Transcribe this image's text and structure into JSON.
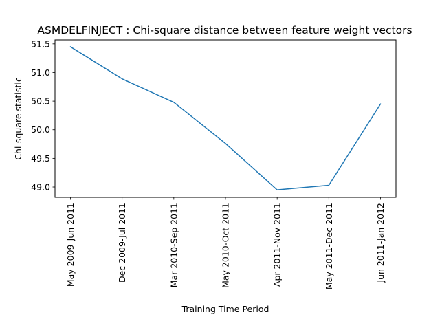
{
  "colors": {
    "line": "#1f77b4",
    "axes": "#000000",
    "background": "#ffffff"
  },
  "chart_data": {
    "type": "line",
    "title": "ASMDELFINJECT : Chi-square distance between feature weight vectors",
    "xlabel": "Training Time Period",
    "ylabel": "Chi-square statistic",
    "categories": [
      "May 2009-Jun 2011",
      "Dec 2009-Jul 2011",
      "Mar 2010-Sep 2011",
      "May 2010-Oct 2011",
      "Apr 2011-Nov 2011",
      "May 2011-Dec 2011",
      "Jun 2011-Jan 2012"
    ],
    "series": [
      {
        "values": [
          51.45,
          50.89,
          50.48,
          49.76,
          48.95,
          49.03,
          50.45
        ]
      }
    ],
    "yticks": [
      "49.0",
      "49.5",
      "50.0",
      "50.5",
      "51.0",
      "51.5"
    ],
    "ylim": [
      48.82,
      51.57
    ],
    "grid": false,
    "legend": "none"
  }
}
